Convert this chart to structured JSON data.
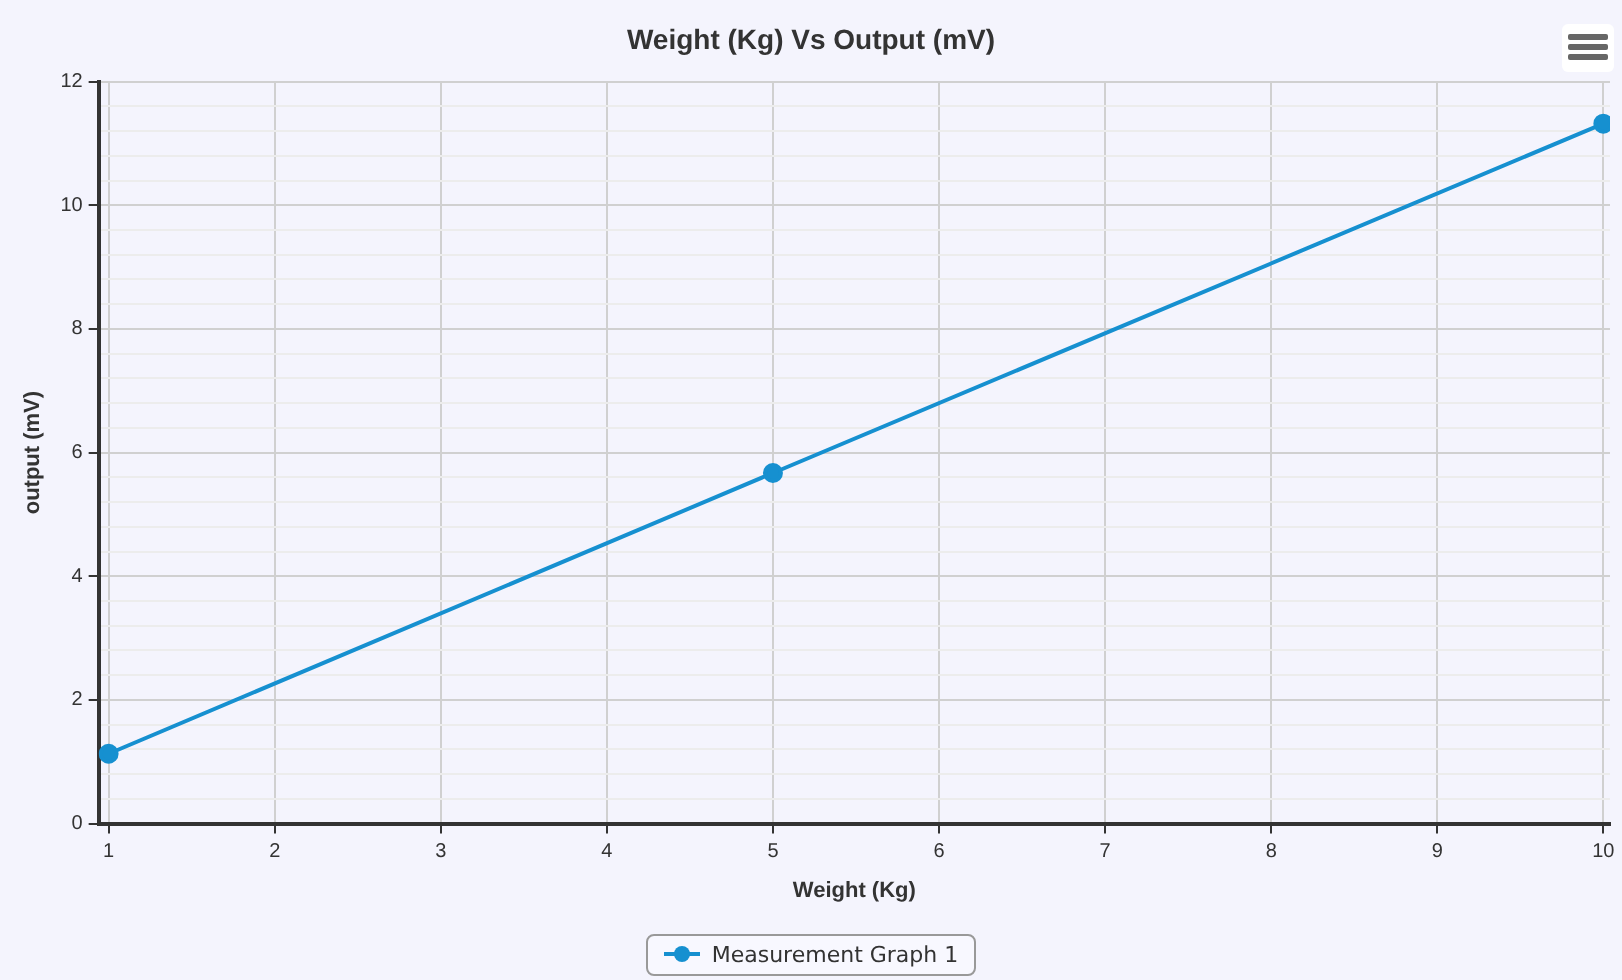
{
  "chart_data": {
    "type": "line",
    "title": "Weight (Kg) Vs Output (mV)",
    "xlabel": "Weight (Kg)",
    "ylabel": "output (mV)",
    "x": [
      1,
      5,
      10
    ],
    "series": [
      {
        "name": "Measurement Graph 1",
        "color": "#1690d0",
        "values": [
          1.13,
          5.67,
          11.32
        ]
      }
    ],
    "xlim": [
      0.94,
      10.04
    ],
    "xticks": [
      1,
      2,
      3,
      4,
      5,
      6,
      7,
      8,
      9,
      10
    ],
    "ylim": [
      0,
      12
    ],
    "yticks": [
      0,
      {
        "value": 0.4,
        "label": null
      },
      {
        "value": 0.8,
        "label": null
      },
      {
        "value": 1.2,
        "label": null
      },
      {
        "value": 1.6,
        "label": null
      },
      2,
      {
        "value": 2.4,
        "label": null
      },
      {
        "value": 2.8,
        "label": null
      },
      {
        "value": 3.2,
        "label": null
      },
      {
        "value": 3.6,
        "label": null
      },
      4,
      {
        "value": 4.4,
        "label": null
      },
      {
        "value": 4.8,
        "label": null
      },
      {
        "value": 5.2,
        "label": null
      },
      {
        "value": 5.6,
        "label": null
      },
      6,
      {
        "value": 6.4,
        "label": null
      },
      {
        "value": 6.8,
        "label": null
      },
      {
        "value": 7.2,
        "label": null
      },
      {
        "value": 7.6,
        "label": null
      },
      8,
      {
        "value": 8.4,
        "label": null
      },
      {
        "value": 8.8,
        "label": null
      },
      {
        "value": 9.2,
        "label": null
      },
      {
        "value": 9.6,
        "label": null
      },
      10,
      {
        "value": 10.4,
        "label": null
      },
      {
        "value": 10.8,
        "label": null
      },
      {
        "value": 11.2,
        "label": null
      },
      {
        "value": 11.6,
        "label": null
      },
      12
    ],
    "grid": true,
    "legend": "bottom",
    "marker": "circle",
    "line_style": "solid"
  }
}
